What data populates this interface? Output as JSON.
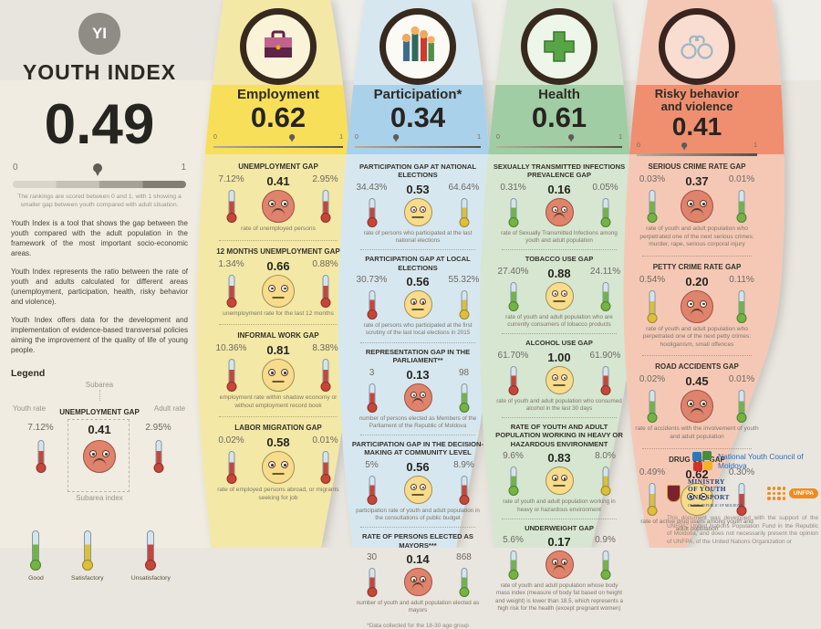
{
  "scale": {
    "min": "0",
    "max": "1"
  },
  "header": {
    "logo": "YI",
    "title": "YOUTH INDEX",
    "score": "0.49",
    "score_num": 0.49,
    "scale_caption": "The rankings are scored between 0 and 1, with 1 showing a smaller gap between youth compared with adult situation.",
    "paragraphs": {
      "p1": "Youth Index is a tool that shows the gap between the youth compared with the adult population in the framework of the most important socio-economic areas.",
      "p2": "Youth Index represents the ratio between the rate of youth and adults calculated for different areas (unemployment, participation, health, risky behavior and violence).",
      "p3": "Youth Index offers data for the development and implementation of evidence-based transversal policies aiming the improvement of the quality of life of young people."
    }
  },
  "legend": {
    "title": "Legend",
    "subarea_label": "Subarea",
    "youth_label": "Youth rate",
    "adult_label": "Adult rate",
    "subarea_index_label": "Subarea index",
    "example": {
      "title": "UNEMPLOYMENT GAP",
      "youth": "7.12%",
      "index": "0.41",
      "adult": "2.95%",
      "mood": "sad",
      "youth_level": "red",
      "adult_level": "red"
    },
    "levels": {
      "good": {
        "label": "Good",
        "level": "green"
      },
      "satisfactory": {
        "label": "Satisfactory",
        "level": "yellow"
      },
      "unsatisfactory": {
        "label": "Unsatisfactory",
        "level": "red"
      }
    }
  },
  "columns": [
    {
      "title": "Employment",
      "score": "0.62",
      "score_num": 0.62,
      "subareas": [
        {
          "title": "UNEMPLOYMENT GAP",
          "youth": "7.12%",
          "index": "0.41",
          "adult": "2.95%",
          "mood": "sad",
          "youth_level": "red",
          "adult_level": "red",
          "caption": "rate of unemployed persons"
        },
        {
          "title": "12 MONTHS UNEMPLOYMENT GAP",
          "youth": "1.34%",
          "index": "0.66",
          "adult": "0.88%",
          "mood": "neutral",
          "youth_level": "red",
          "adult_level": "red",
          "caption": "unemployment rate for the last 12 months"
        },
        {
          "title": "INFORMAL WORK GAP",
          "youth": "10.36%",
          "index": "0.81",
          "adult": "8.38%",
          "mood": "neutral",
          "youth_level": "red",
          "adult_level": "red",
          "caption": "employment rate within shadow economy or without employment record book"
        },
        {
          "title": "LABOR MIGRATION GAP",
          "youth": "0.02%",
          "index": "0.58",
          "adult": "0.01%",
          "mood": "neutral",
          "youth_level": "red",
          "adult_level": "red",
          "caption": "rate of employed persons abroad, or migrants seeking for job"
        }
      ]
    },
    {
      "title": "Participation*",
      "score": "0.34",
      "score_num": 0.34,
      "footnote": "*Data collected for the 18-30 age group",
      "subareas": [
        {
          "title": "PARTICIPATION GAP AT NATIONAL ELECTIONS",
          "youth": "34.43%",
          "index": "0.53",
          "adult": "64.64%",
          "mood": "neutral",
          "youth_level": "red",
          "adult_level": "yellow",
          "caption": "rate of persons who participated at the last national elections"
        },
        {
          "title": "PARTICIPATION GAP AT LOCAL ELECTIONS",
          "youth": "30.73%",
          "index": "0.56",
          "adult": "55.32%",
          "mood": "neutral",
          "youth_level": "red",
          "adult_level": "yellow",
          "caption": "rate of persons who participated at the first scrutiny of the last local elections in 2015"
        },
        {
          "title": "REPRESENTATION GAP IN THE PARLIAMENT**",
          "youth": "3",
          "index": "0.13",
          "adult": "98",
          "mood": "sad",
          "youth_level": "red",
          "adult_level": "green",
          "caption": "number of persons elected as Members of the Parliament of the Republic of Moldova"
        },
        {
          "title": "PARTICIPATION GAP IN THE DECISION-MAKING AT COMMUNITY LEVEL",
          "youth": "5%",
          "index": "0.56",
          "adult": "8.9%",
          "mood": "neutral",
          "youth_level": "red",
          "adult_level": "red",
          "caption": "participation rate of youth and adult population in the consultations of public budget"
        },
        {
          "title": "RATE OF PERSONS ELECTED AS MAYORS***",
          "youth": "30",
          "index": "0.14",
          "adult": "868",
          "mood": "sad",
          "youth_level": "red",
          "adult_level": "green",
          "caption": "number of youth and adult population elected as mayors"
        }
      ]
    },
    {
      "title": "Health",
      "score": "0.61",
      "score_num": 0.61,
      "subareas": [
        {
          "title": "SEXUALLY TRANSMITTED INFECTIONS PREVALENCE GAP",
          "youth": "0.31%",
          "index": "0.16",
          "adult": "0.05%",
          "mood": "sad",
          "youth_level": "green",
          "adult_level": "green",
          "caption": "rate of Sexually Transmitted Infections among youth and adult population"
        },
        {
          "title": "TOBACCO USE GAP",
          "youth": "27.40%",
          "index": "0.88",
          "adult": "24.11%",
          "mood": "neutral",
          "youth_level": "green",
          "adult_level": "green",
          "caption": "rate of youth and adult population who are currently consumers of tobacco products"
        },
        {
          "title": "ALCOHOL USE GAP",
          "youth": "61.70%",
          "index": "1.00",
          "adult": "61.90%",
          "mood": "neutral",
          "youth_level": "red",
          "adult_level": "red",
          "caption": "rate of youth and adult population who consumed alcohol in the last 30 days"
        },
        {
          "title": "RATE OF YOUTH AND ADULT POPULATION WORKING IN HEAVY OR HAZARDOUS ENVIRONMENT",
          "youth": "9.6%",
          "index": "0.83",
          "adult": "8.0%",
          "mood": "neutral",
          "youth_level": "green",
          "adult_level": "yellow",
          "caption": "rate of youth and adult population working in heavy or hazardous environment"
        },
        {
          "title": "UNDERWEIGHT GAP",
          "youth": "5.6%",
          "index": "0.17",
          "adult": "0.9%",
          "mood": "sad",
          "youth_level": "green",
          "adult_level": "green",
          "caption": "rate of youth and adult population whose body mass index (measure of body fat based on height and weight) is lower than 18.5, which represents a high risk for the health (except pregnant women)"
        }
      ]
    },
    {
      "title": "Risky behavior\nand violence",
      "score": "0.41",
      "score_num": 0.41,
      "subareas": [
        {
          "title": "SERIOUS CRIME RATE GAP",
          "youth": "0.03%",
          "index": "0.37",
          "adult": "0.01%",
          "mood": "sad",
          "youth_level": "green",
          "adult_level": "green",
          "caption": "rate of youth and adult population who perpetrated one of the next serious crimes: murder, rape, serious corporal injury"
        },
        {
          "title": "PETTY CRIME RATE GAP",
          "youth": "0.54%",
          "index": "0.20",
          "adult": "0.11%",
          "mood": "sad",
          "youth_level": "yellow",
          "adult_level": "green",
          "caption": "rate of youth and adult population who perpetrated one of the next petty crimes: hooliganism, small offences"
        },
        {
          "title": "ROAD ACCIDENTS GAP",
          "youth": "0.02%",
          "index": "0.45",
          "adult": "0.01%",
          "mood": "sad",
          "youth_level": "green",
          "adult_level": "green",
          "caption": "rate of accidents with the involvement of youth and adult population"
        },
        {
          "title": "DRUG USE GAP",
          "youth": "0.49%",
          "index": "0.62",
          "adult": "0.30%",
          "mood": "neutral",
          "youth_level": "yellow",
          "adult_level": "red",
          "caption": "rate of active drug users among youth and adult population"
        }
      ]
    }
  ],
  "footer": {
    "nyc_text": "National Youth Council of Moldova",
    "ministry_l1": "MINISTRY",
    "ministry_l2": "OF YOUTH",
    "ministry_l3": "AND SPORT",
    "ministry_sub": "OF THE REPUBLIC OF MOLDOVA",
    "unfpa_label": "UNFPA",
    "disclaimer": "This document was developed with the support of the UNFPA, United Nations Population Fund in the Republic of Moldova, and does not necessarily present the opinion of UNFPA, of the United Nations Organization or"
  }
}
